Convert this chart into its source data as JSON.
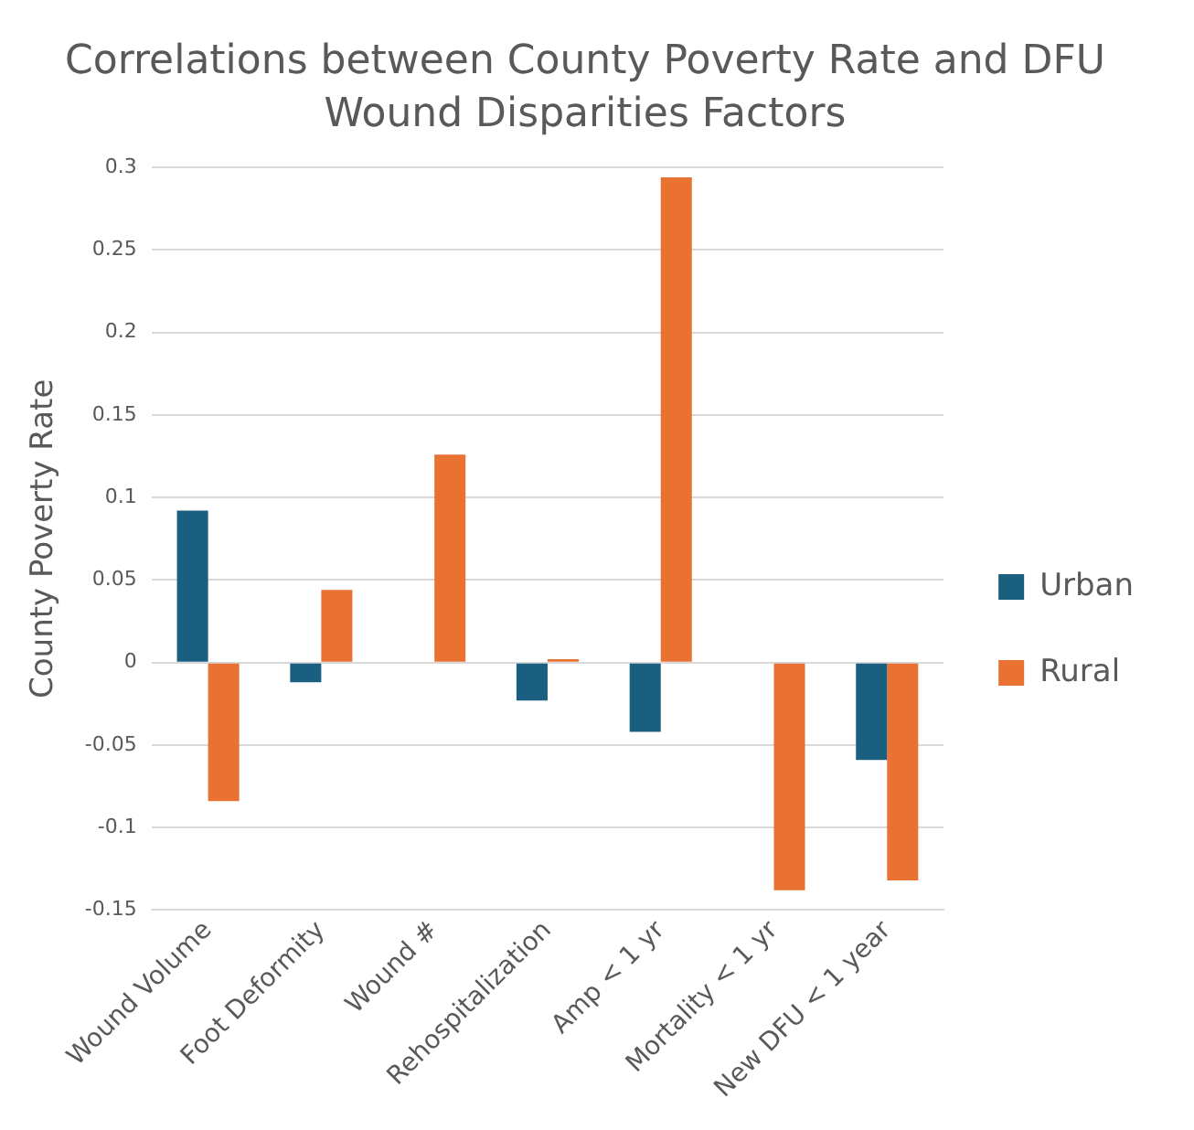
{
  "chart_data": {
    "type": "bar",
    "title": "Correlations between County Poverty Rate and DFU Wound Disparities Factors",
    "ylabel": "County Poverty Rate",
    "categories": [
      "Wound Volume",
      "Foot Deformity",
      "Wound #",
      "Rehospitalization",
      "Amp < 1 yr",
      "Mortality < 1 yr",
      "New DFU < 1 year"
    ],
    "series": [
      {
        "name": "Urban",
        "color": "#1a5e80",
        "values": [
          0.092,
          -0.012,
          null,
          -0.023,
          -0.042,
          null,
          -0.059
        ]
      },
      {
        "name": "Rural",
        "color": "#e97132",
        "values": [
          -0.084,
          0.044,
          0.126,
          0.002,
          0.294,
          -0.138,
          -0.132
        ]
      }
    ],
    "ylim": [
      -0.15,
      0.3
    ],
    "yticks": [
      -0.15,
      -0.1,
      -0.05,
      0,
      0.05,
      0.1,
      0.15,
      0.2,
      0.25,
      0.3
    ],
    "grid": "y",
    "legend": "right"
  }
}
